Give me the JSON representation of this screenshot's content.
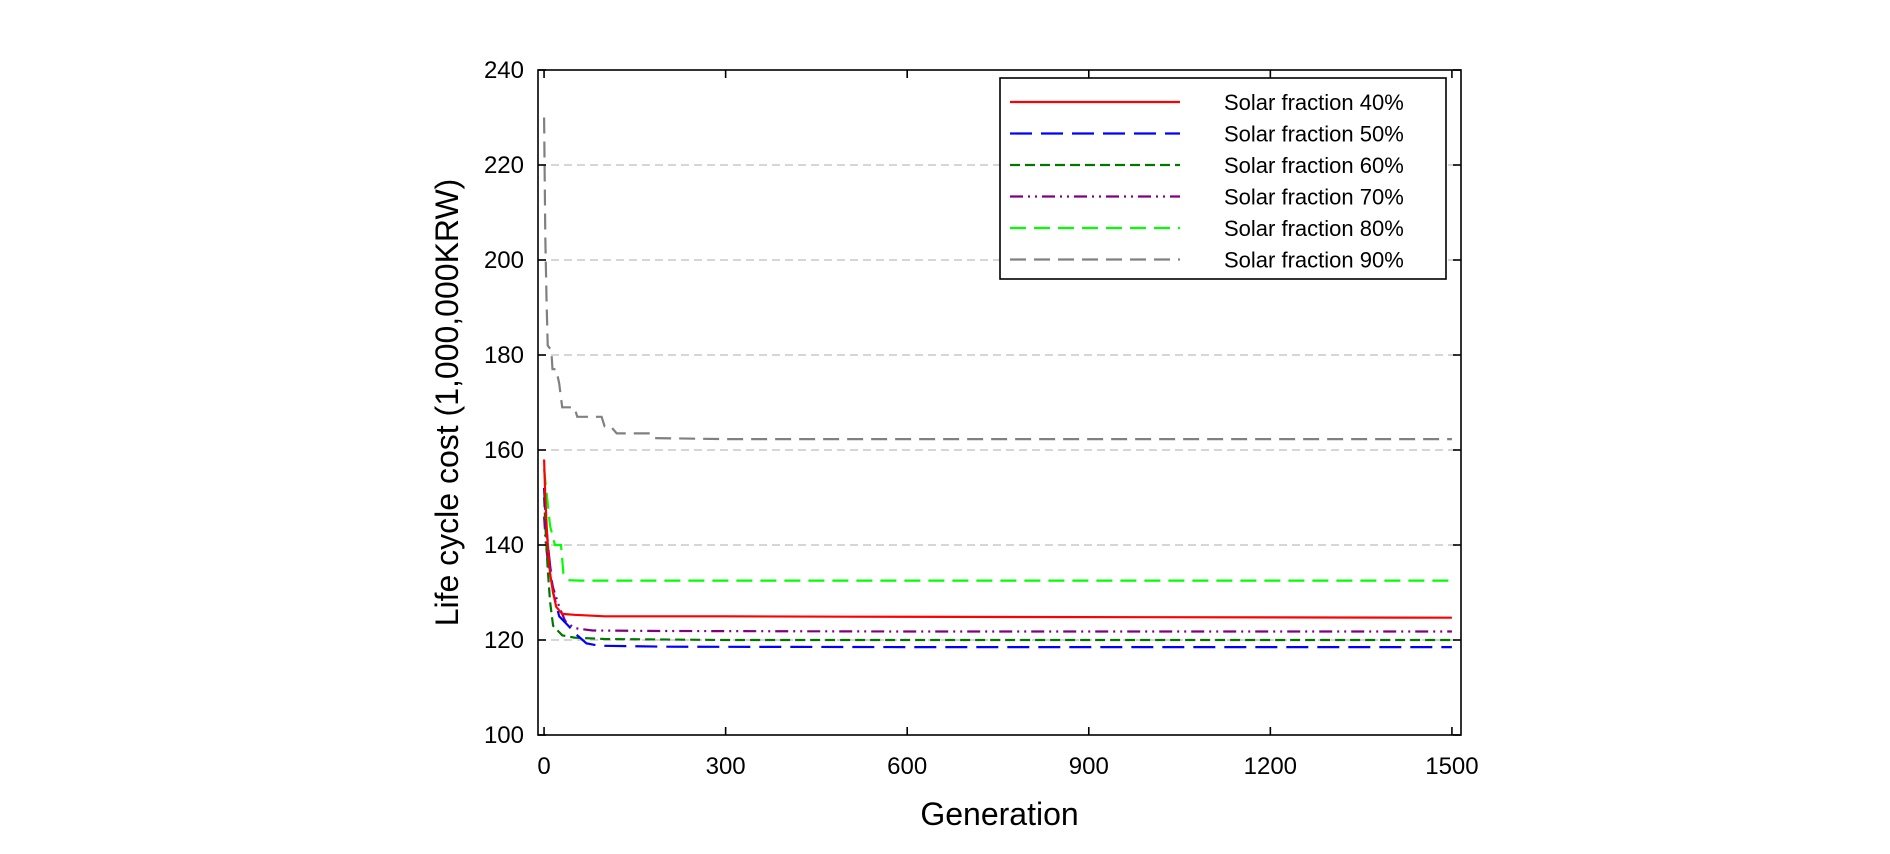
{
  "chart_data": {
    "type": "line",
    "title": "",
    "xlabel": "Generation",
    "ylabel": "Life cycle cost (1,000,000KRW)",
    "xlim": [
      -10,
      1515
    ],
    "ylim": [
      100,
      240
    ],
    "xticks": [
      0,
      300,
      600,
      900,
      1200,
      1500
    ],
    "yticks": [
      100,
      120,
      140,
      160,
      180,
      200,
      220,
      240
    ],
    "grid": "horizontal-dashed",
    "legend_position": "top-right",
    "series": [
      {
        "name": "Solar fraction 40%",
        "color": "#ff0000",
        "dash": "solid",
        "points": [
          [
            0,
            158
          ],
          [
            2,
            150
          ],
          [
            5,
            142
          ],
          [
            10,
            134
          ],
          [
            15,
            130
          ],
          [
            20,
            127
          ],
          [
            30,
            125.5
          ],
          [
            50,
            125.3
          ],
          [
            100,
            125
          ],
          [
            300,
            125
          ],
          [
            500,
            124.9
          ],
          [
            1000,
            124.8
          ],
          [
            1500,
            124.7
          ]
        ]
      },
      {
        "name": "Solar fraction 50%",
        "color": "#0000ff",
        "dash": "long",
        "points": [
          [
            0,
            152
          ],
          [
            3,
            145
          ],
          [
            8,
            138
          ],
          [
            15,
            130
          ],
          [
            25,
            125
          ],
          [
            40,
            123
          ],
          [
            55,
            121
          ],
          [
            70,
            119.3
          ],
          [
            90,
            118.8
          ],
          [
            200,
            118.6
          ],
          [
            600,
            118.5
          ],
          [
            1000,
            118.5
          ],
          [
            1500,
            118.5
          ]
        ]
      },
      {
        "name": "Solar fraction 60%",
        "color": "#007800",
        "dash": "short",
        "points": [
          [
            0,
            150
          ],
          [
            3,
            142
          ],
          [
            6,
            135
          ],
          [
            10,
            128
          ],
          [
            15,
            123
          ],
          [
            30,
            121
          ],
          [
            50,
            120.5
          ],
          [
            100,
            120.2
          ],
          [
            300,
            120
          ],
          [
            800,
            120
          ],
          [
            1500,
            120
          ]
        ]
      },
      {
        "name": "Solar fraction 70%",
        "color": "#800080",
        "dash": "dashdotdot",
        "points": [
          [
            0,
            146
          ],
          [
            3,
            140
          ],
          [
            8,
            135
          ],
          [
            15,
            131
          ],
          [
            25,
            127
          ],
          [
            35,
            124
          ],
          [
            50,
            122.5
          ],
          [
            80,
            122
          ],
          [
            200,
            121.9
          ],
          [
            600,
            121.8
          ],
          [
            1500,
            121.8
          ]
        ]
      },
      {
        "name": "Solar fraction 80%",
        "color": "#00ff00",
        "dash": "medium",
        "points": [
          [
            0,
            156
          ],
          [
            5,
            150
          ],
          [
            10,
            144
          ],
          [
            18,
            140
          ],
          [
            28,
            140
          ],
          [
            32,
            134
          ],
          [
            40,
            132.6
          ],
          [
            60,
            132.5
          ],
          [
            200,
            132.5
          ],
          [
            800,
            132.5
          ],
          [
            1500,
            132.5
          ]
        ]
      },
      {
        "name": "Solar fraction 90%",
        "color": "#808080",
        "dash": "medium",
        "points": [
          [
            0,
            230
          ],
          [
            2,
            205
          ],
          [
            4,
            192
          ],
          [
            6,
            182
          ],
          [
            12,
            181
          ],
          [
            14,
            177
          ],
          [
            20,
            177
          ],
          [
            25,
            174
          ],
          [
            30,
            169
          ],
          [
            50,
            169
          ],
          [
            55,
            167
          ],
          [
            95,
            167
          ],
          [
            100,
            165
          ],
          [
            110,
            165
          ],
          [
            120,
            163.5
          ],
          [
            175,
            163.5
          ],
          [
            180,
            162.5
          ],
          [
            300,
            162.3
          ],
          [
            800,
            162.3
          ],
          [
            1500,
            162.3
          ]
        ]
      }
    ]
  }
}
